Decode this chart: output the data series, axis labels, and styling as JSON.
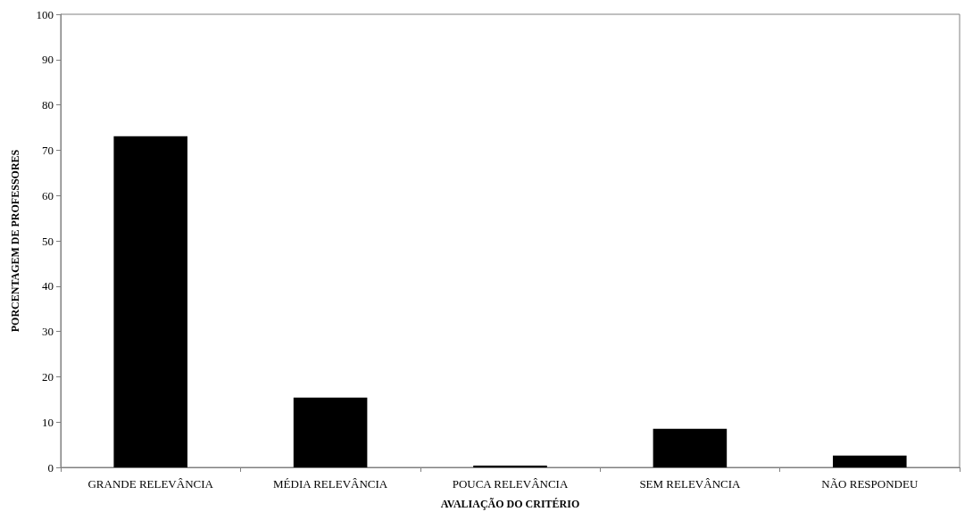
{
  "chart_data": {
    "type": "bar",
    "xlabel": "AVALIAÇÃO DO CRITÉRIO",
    "ylabel": "PORCENTAGEM DE PROFESSORES",
    "categories": [
      "GRANDE RELEVÂNCIA",
      "MÉDIA RELEVÂNCIA",
      "POUCA RELEVÂNCIA",
      "SEM RELEVÂNCIA",
      "NÃO RESPONDEU"
    ],
    "values": [
      73.1,
      15.4,
      0.4,
      8.5,
      2.6
    ],
    "color": "#000000",
    "ylim": [
      0,
      100
    ],
    "yticks": [
      0,
      10,
      20,
      30,
      40,
      50,
      60,
      70,
      80,
      90,
      100
    ],
    "grid": false
  }
}
